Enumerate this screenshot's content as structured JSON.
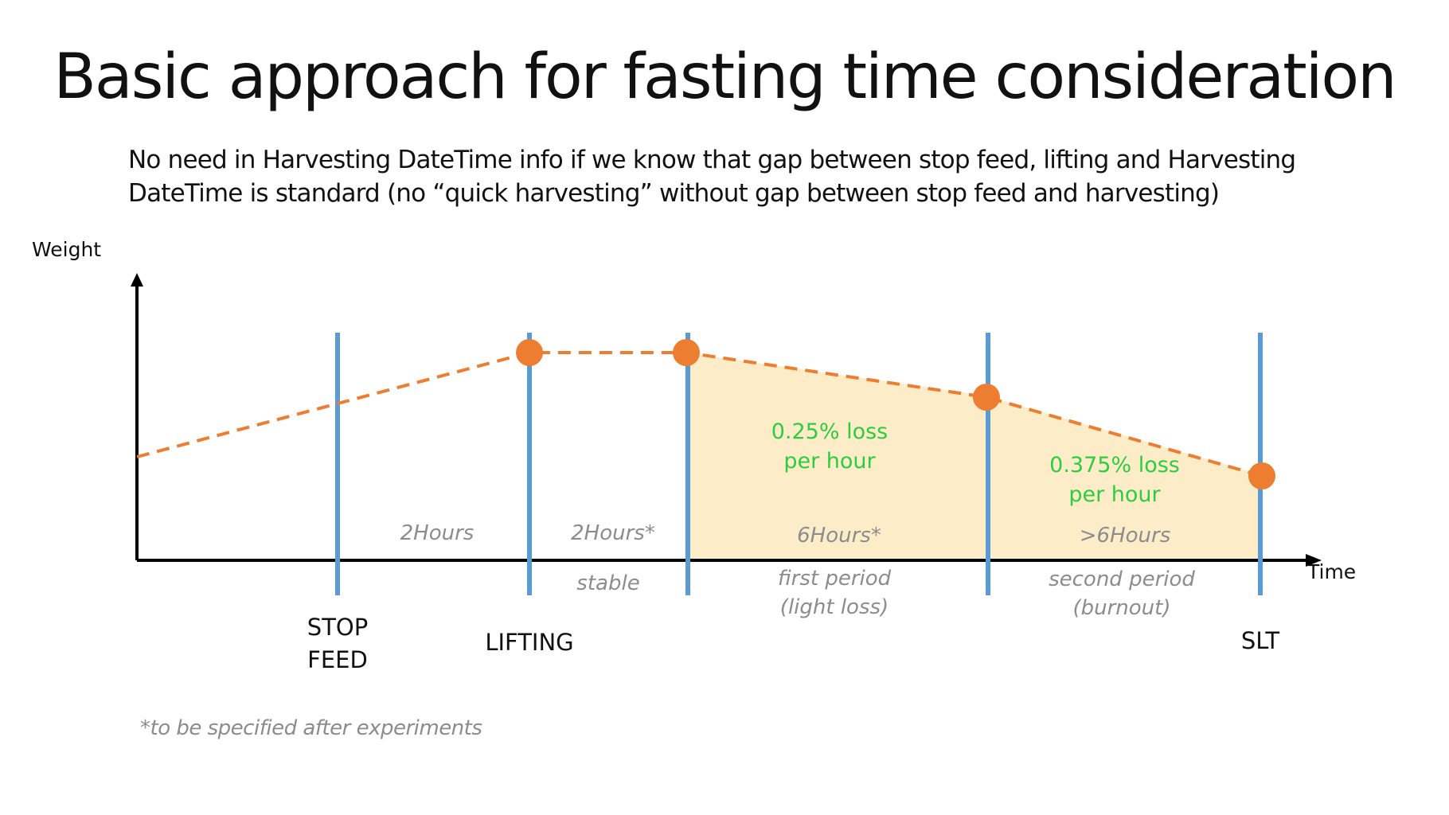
{
  "title": "Basic approach for fasting time consideration",
  "subtitle": {
    "line1": "No need in Harvesting DateTime info if we know that gap between stop feed, lifting and Harvesting",
    "line2": "DateTime is standard (no “quick harvesting” without gap between stop feed and harvesting)"
  },
  "axes": {
    "y_label": "Weight",
    "x_label": "Time"
  },
  "events": {
    "stop_feed_line1": "STOP",
    "stop_feed_line2": "FEED",
    "lifting": "LIFTING",
    "slt": "SLT"
  },
  "durations": {
    "d1": "2Hours",
    "d2": "2Hours*",
    "d3": "6Hours*",
    "d4": ">6Hours"
  },
  "periods": {
    "stable": "stable",
    "first_line1": "first period",
    "first_line2": "(light loss)",
    "second_line1": "second period",
    "second_line2": "(burnout)"
  },
  "loss_rates": {
    "first_line1": "0.25% loss",
    "first_line2": "per hour",
    "second_line1": "0.375% loss",
    "second_line2": "per hour"
  },
  "footnote": "*to  be specified after experiments",
  "colors": {
    "marker_line": "#5b9bd5",
    "weight_curve": "#ed7d31",
    "loss_fill": "#fdecc8",
    "loss_text": "#2ecc40",
    "muted_text": "#8c8c8c"
  }
}
